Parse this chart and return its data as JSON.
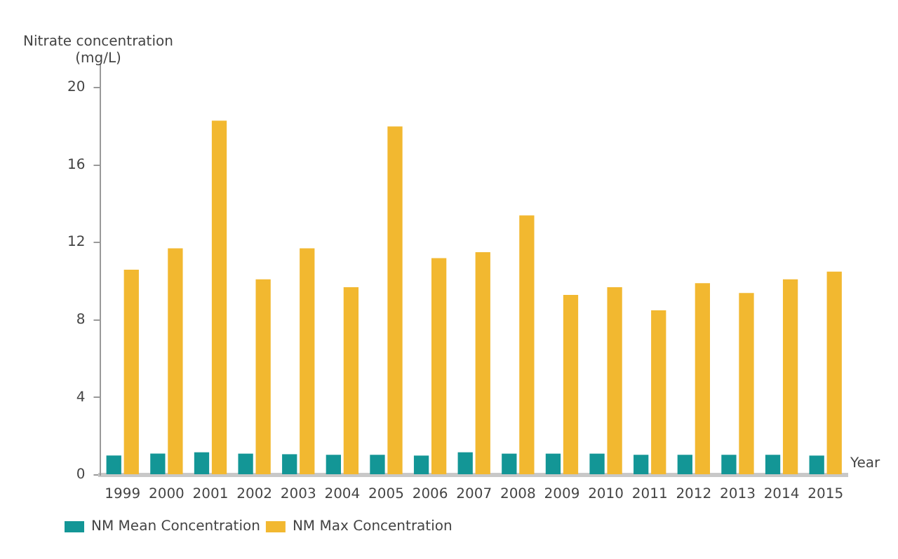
{
  "chart_data": {
    "type": "bar",
    "ylabel": "Nitrate concentration\n(mg/L)",
    "xlabel": "Year",
    "categories": [
      "1999",
      "2000",
      "2001",
      "2002",
      "2003",
      "2004",
      "2005",
      "2006",
      "2007",
      "2008",
      "2009",
      "2010",
      "2011",
      "2012",
      "2013",
      "2014",
      "2015"
    ],
    "series": [
      {
        "name": "NM Mean Concentration",
        "color": "#139696",
        "values": [
          1.0,
          1.1,
          1.17,
          1.1,
          1.07,
          1.04,
          1.04,
          1.0,
          1.17,
          1.1,
          1.1,
          1.1,
          1.04,
          1.04,
          1.04,
          1.04,
          1.0
        ]
      },
      {
        "name": "NM Max Concentration",
        "color": "#f2b830",
        "values": [
          10.6,
          11.7,
          18.3,
          10.1,
          11.7,
          9.7,
          18.0,
          11.2,
          11.5,
          13.4,
          9.3,
          9.7,
          8.5,
          9.9,
          9.4,
          10.1,
          10.5
        ]
      }
    ],
    "ylim": [
      0,
      21.2
    ],
    "yticks": [
      0,
      4,
      8,
      12,
      16,
      20
    ],
    "grid": false,
    "legend": "bottom left"
  }
}
